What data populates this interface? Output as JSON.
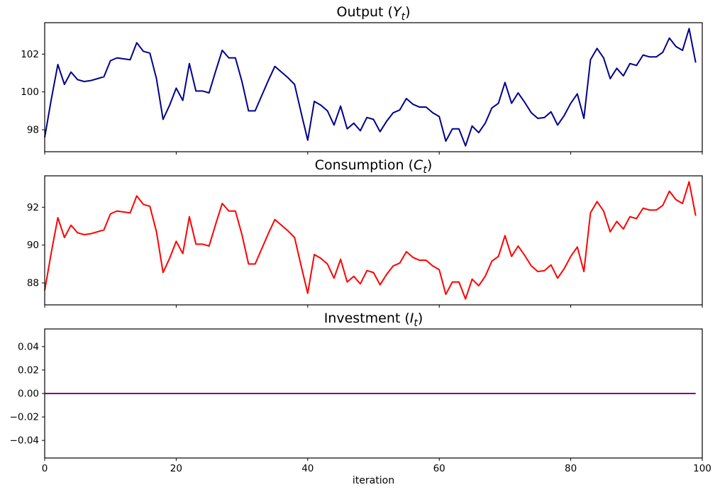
{
  "figure": {
    "background": "#ffffff",
    "spine_color": "#000000"
  },
  "chart_data": [
    {
      "type": "line",
      "name": "output",
      "title": {
        "prefix": "Output (",
        "variable": "Y",
        "subscript": "t",
        "suffix": ")"
      },
      "color": "#00008B",
      "xlim": [
        0,
        100
      ],
      "ylim": [
        96.84,
        103.66
      ],
      "xticks": [
        0,
        20,
        40,
        60,
        80,
        100
      ],
      "xtick_labels": [
        "0",
        "20",
        "40",
        "60",
        "80",
        "100"
      ],
      "show_xtick_labels": false,
      "yticks": [
        98,
        100,
        102
      ],
      "ytick_labels": [
        "98",
        "100",
        "102"
      ],
      "xlabel": "",
      "x": "0..99",
      "values": [
        97.6,
        99.6,
        101.45,
        100.4,
        101.05,
        100.65,
        100.55,
        100.6,
        100.7,
        100.8,
        101.65,
        101.8,
        101.75,
        101.7,
        102.6,
        102.15,
        102.05,
        100.7,
        98.55,
        99.3,
        100.2,
        99.55,
        101.5,
        100.05,
        100.05,
        99.95,
        101.1,
        102.2,
        101.8,
        101.8,
        100.55,
        99.0,
        99.0,
        99.8,
        100.6,
        101.35,
        101.05,
        100.75,
        100.4,
        98.9,
        97.45,
        99.5,
        99.3,
        99.0,
        98.25,
        99.25,
        98.05,
        98.35,
        97.95,
        98.65,
        98.55,
        97.9,
        98.45,
        98.9,
        99.05,
        99.65,
        99.35,
        99.2,
        99.2,
        98.9,
        98.7,
        97.4,
        98.05,
        98.05,
        97.15,
        98.2,
        97.85,
        98.35,
        99.15,
        99.4,
        100.5,
        99.4,
        99.95,
        99.45,
        98.9,
        98.6,
        98.65,
        98.95,
        98.25,
        98.75,
        99.4,
        99.9,
        98.6,
        101.7,
        102.3,
        101.8,
        100.7,
        101.25,
        100.85,
        101.5,
        101.4,
        101.95,
        101.85,
        101.85,
        102.1,
        102.85,
        102.4,
        102.2,
        103.35,
        101.55
      ]
    },
    {
      "type": "line",
      "name": "consumption",
      "title": {
        "prefix": "Consumption (",
        "variable": "C",
        "subscript": "t",
        "suffix": ")"
      },
      "color": "#FF0000",
      "xlim": [
        0,
        100
      ],
      "ylim": [
        86.84,
        93.66
      ],
      "xticks": [
        0,
        20,
        40,
        60,
        80,
        100
      ],
      "xtick_labels": [
        "0",
        "20",
        "40",
        "60",
        "80",
        "100"
      ],
      "show_xtick_labels": false,
      "yticks": [
        88,
        90,
        92
      ],
      "ytick_labels": [
        "88",
        "90",
        "92"
      ],
      "xlabel": "",
      "x": "0..99",
      "values": [
        87.6,
        89.6,
        91.45,
        90.4,
        91.05,
        90.65,
        90.55,
        90.6,
        90.7,
        90.8,
        91.65,
        91.8,
        91.75,
        91.7,
        92.6,
        92.15,
        92.05,
        90.7,
        88.55,
        89.3,
        90.2,
        89.55,
        91.5,
        90.05,
        90.05,
        89.95,
        91.1,
        92.2,
        91.8,
        91.8,
        90.55,
        89.0,
        89.0,
        89.8,
        90.6,
        91.35,
        91.05,
        90.75,
        90.4,
        88.9,
        87.45,
        89.5,
        89.3,
        89.0,
        88.25,
        89.25,
        88.05,
        88.35,
        87.95,
        88.65,
        88.55,
        87.9,
        88.45,
        88.9,
        89.05,
        89.65,
        89.35,
        89.2,
        89.2,
        88.9,
        88.7,
        87.4,
        88.05,
        88.05,
        87.15,
        88.2,
        87.85,
        88.35,
        89.15,
        89.4,
        90.5,
        89.4,
        89.95,
        89.45,
        88.9,
        88.6,
        88.65,
        88.95,
        88.25,
        88.75,
        89.4,
        89.9,
        88.6,
        91.7,
        92.3,
        91.8,
        90.7,
        91.25,
        90.85,
        91.5,
        91.4,
        91.95,
        91.85,
        91.85,
        92.1,
        92.85,
        92.4,
        92.2,
        93.35,
        91.55
      ]
    },
    {
      "type": "line",
      "name": "investment",
      "title": {
        "prefix": "Investment (",
        "variable": "I",
        "subscript": "t",
        "suffix": ")"
      },
      "color": "#800080",
      "xlim": [
        0,
        100
      ],
      "ylim": [
        -0.055,
        0.055
      ],
      "xticks": [
        0,
        20,
        40,
        60,
        80,
        100
      ],
      "xtick_labels": [
        "0",
        "20",
        "40",
        "60",
        "80",
        "100"
      ],
      "show_xtick_labels": true,
      "yticks": [
        0.04,
        0.02,
        0.0,
        -0.02,
        -0.04
      ],
      "ytick_labels": [
        "0.04",
        "0.02",
        "0.00",
        "−0.02",
        "−0.04"
      ],
      "xlabel": "iteration",
      "x": "0..99",
      "constant_value": 0.0,
      "n_points": 100
    }
  ]
}
